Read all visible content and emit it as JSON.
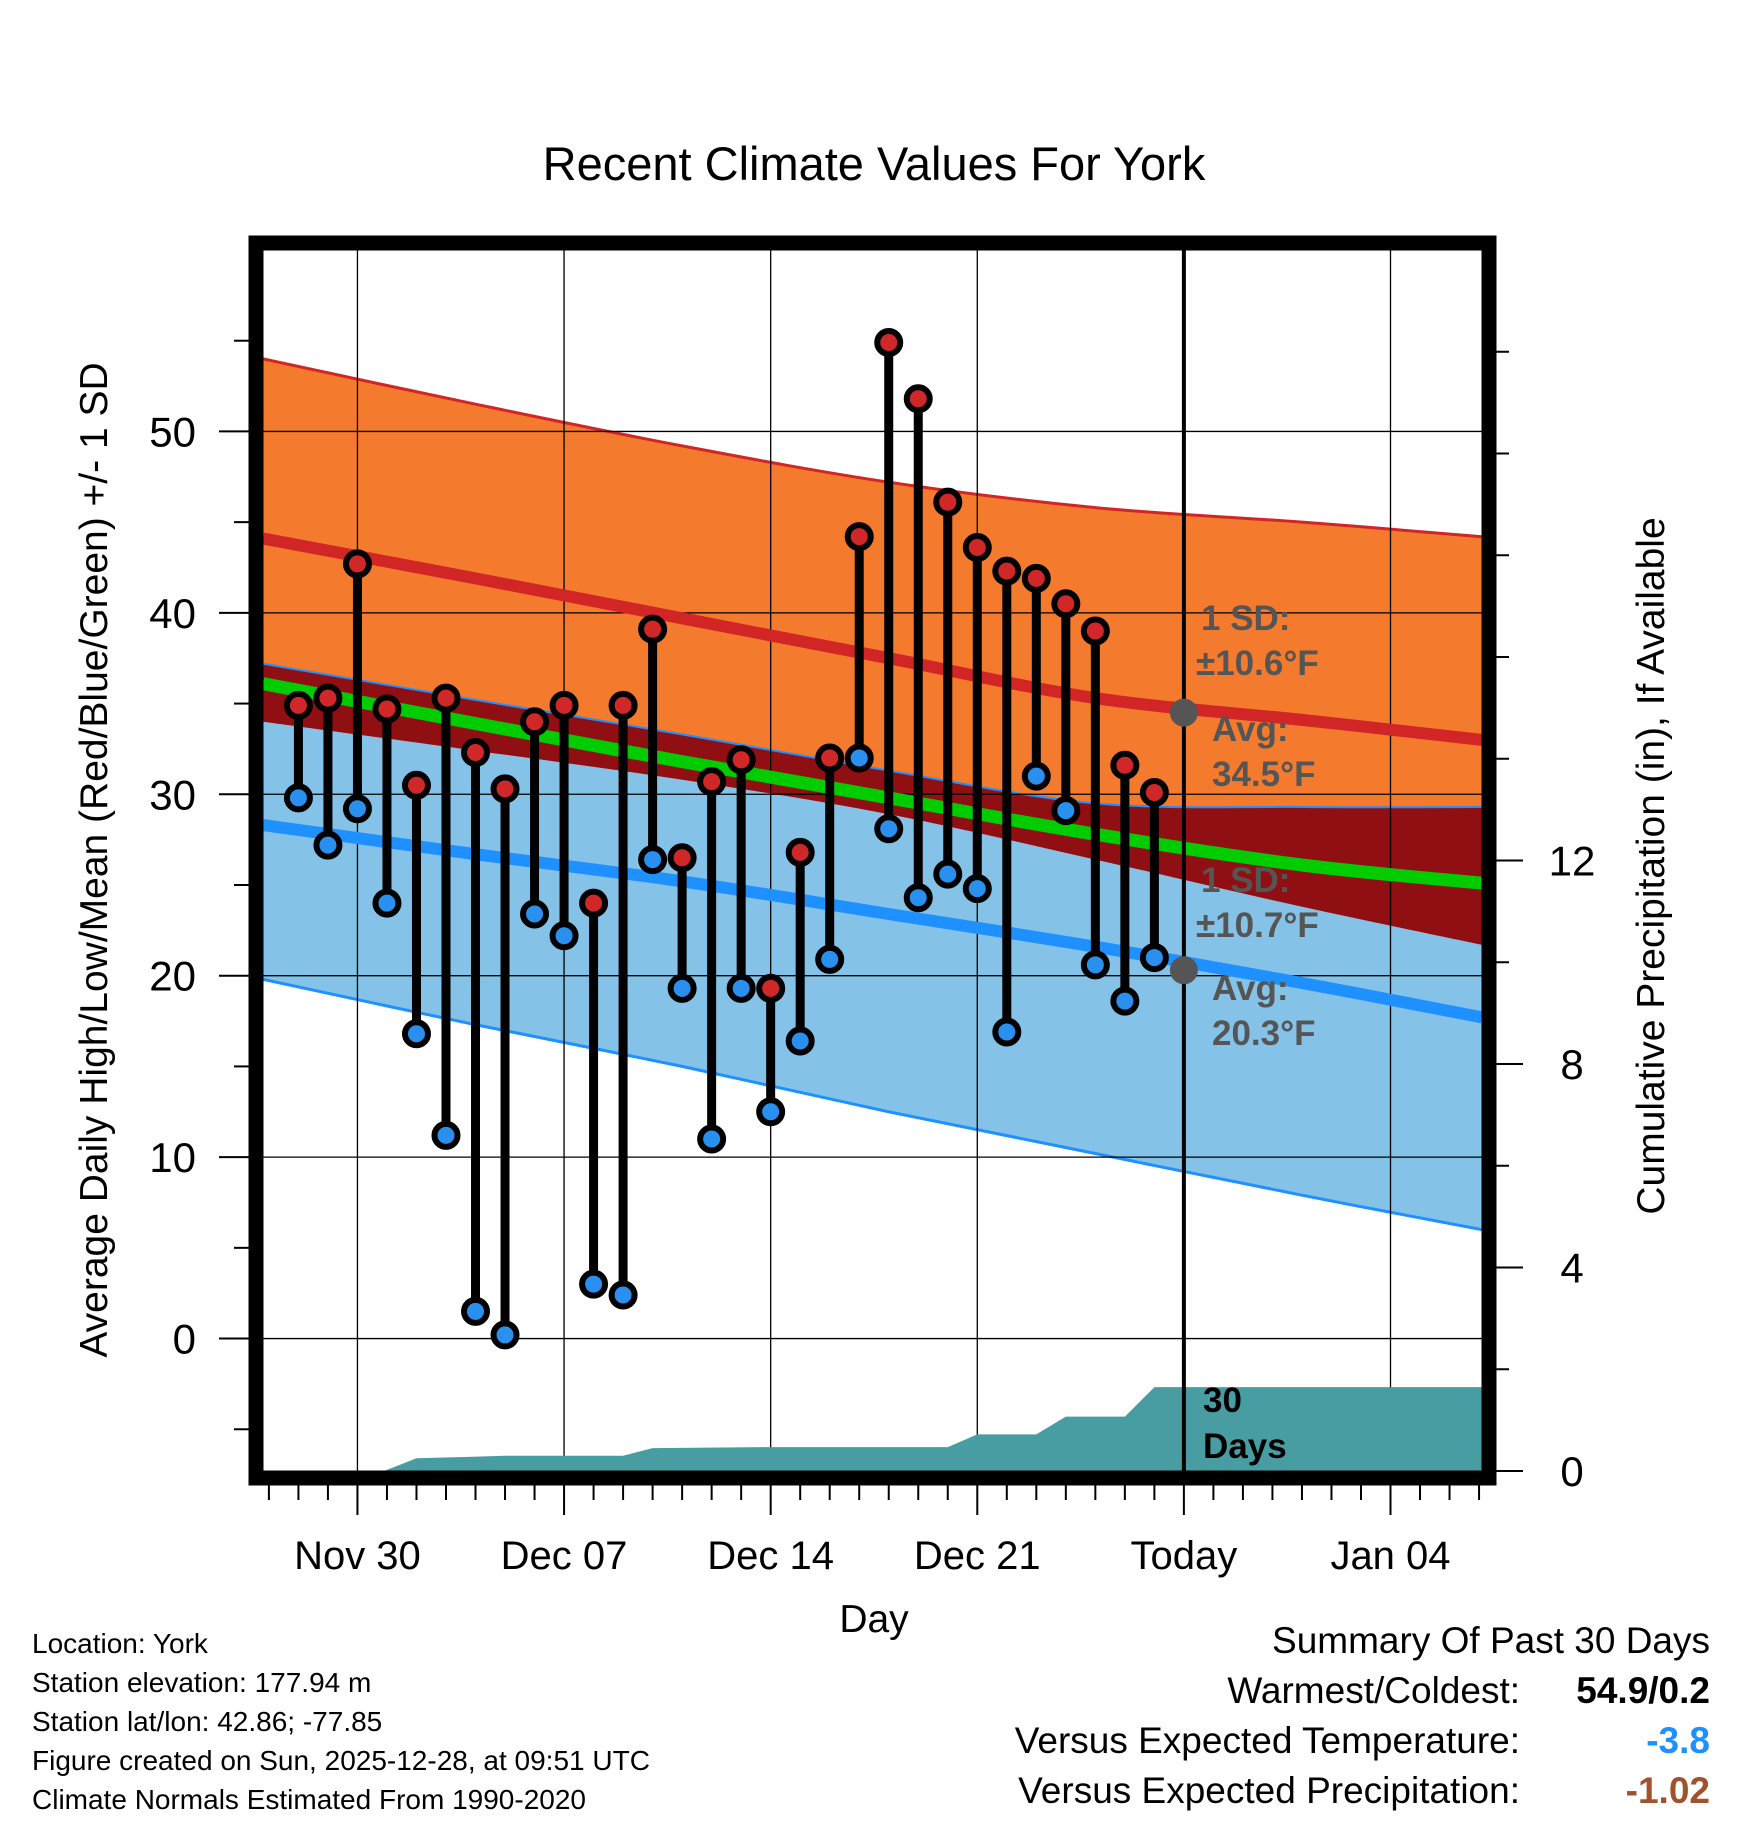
{
  "chart_data": {
    "type": "line",
    "title": "Recent Climate Values For York",
    "xlabel": "Day",
    "ylabel": "Average Daily High/Low/Mean (Red/Blue/Green) +/- 1 SD",
    "y2label": "Cumulative Precipitation (in), If Available",
    "xlim": [
      -3.2,
      38.1
    ],
    "ylim": [
      -7.3,
      60
    ],
    "y2lim": [
      0,
      24
    ],
    "x_ticks": [
      {
        "x": 0,
        "label": "Nov 30"
      },
      {
        "x": 7,
        "label": "Dec 07"
      },
      {
        "x": 14,
        "label": "Dec 14"
      },
      {
        "x": 21,
        "label": "Dec 21"
      },
      {
        "x": 28,
        "label": "Today"
      },
      {
        "x": 35,
        "label": "Jan 04"
      }
    ],
    "y_ticks": [
      0,
      10,
      20,
      30,
      40,
      50
    ],
    "y2_ticks": [
      0,
      4,
      8,
      12
    ],
    "today_x": 28,
    "normals": {
      "x": [
        -3.2,
        4,
        11,
        18,
        25,
        32,
        38.1
      ],
      "high_mean": [
        44.1,
        41.9,
        39.7,
        37.5,
        35.3,
        34.1,
        33.0
      ],
      "high_upper": [
        54.0,
        51.5,
        49.2,
        47.2,
        45.8,
        45.0,
        44.2
      ],
      "high_lower": [
        37.2,
        35.2,
        33.3,
        31.3,
        29.5,
        29.3,
        29.3
      ],
      "mean": [
        36.1,
        33.9,
        31.8,
        29.8,
        27.8,
        26.1,
        25.1
      ],
      "low_mean": [
        28.3,
        26.7,
        25.2,
        23.4,
        21.6,
        19.6,
        17.7
      ],
      "low_upper": [
        34.0,
        32.4,
        30.8,
        28.9,
        26.4,
        23.8,
        21.7
      ],
      "low_lower": [
        19.8,
        17.3,
        15.0,
        12.5,
        10.2,
        7.9,
        6.0
      ]
    },
    "high_sd_label": [
      "1 SD:",
      "±10.6°F"
    ],
    "high_avg_label": [
      "Avg:",
      "34.5°F"
    ],
    "low_sd_label": [
      "1 SD:",
      "±10.7°F"
    ],
    "low_avg_label": [
      "Avg:",
      "20.3°F"
    ],
    "today_high_avg": 34.5,
    "today_low_avg": 20.3,
    "days_label": [
      "30",
      "Days"
    ],
    "series": [
      {
        "name": "Daily High",
        "x": [
          -2,
          -1,
          0,
          1,
          2,
          3,
          4,
          5,
          6,
          7,
          8,
          9,
          10,
          11,
          12,
          13,
          14,
          15,
          16,
          17,
          18,
          19,
          20,
          21,
          22,
          23,
          24,
          25,
          26,
          27
        ],
        "values": [
          34.9,
          35.3,
          42.7,
          34.7,
          30.5,
          35.3,
          32.3,
          30.3,
          34.0,
          34.9,
          24.0,
          34.9,
          39.1,
          26.5,
          30.7,
          31.9,
          19.3,
          26.8,
          32.0,
          44.2,
          54.9,
          51.8,
          46.1,
          43.6,
          42.3,
          41.9,
          40.5,
          39.0,
          31.6,
          30.1
        ]
      },
      {
        "name": "Daily Low",
        "x": [
          -2,
          -1,
          0,
          1,
          2,
          3,
          4,
          5,
          6,
          7,
          8,
          9,
          10,
          11,
          12,
          13,
          14,
          15,
          16,
          17,
          18,
          19,
          20,
          21,
          22,
          23,
          24,
          25,
          26,
          27
        ],
        "values": [
          29.8,
          27.2,
          29.2,
          24.0,
          16.8,
          11.2,
          1.5,
          0.2,
          23.4,
          22.2,
          3.0,
          2.4,
          26.4,
          19.3,
          11.0,
          19.3,
          12.5,
          16.4,
          20.9,
          32.0,
          28.1,
          24.3,
          25.6,
          24.8,
          16.9,
          31.0,
          29.1,
          20.6,
          18.6,
          21.0
        ]
      },
      {
        "name": "Cumulative Precipitation",
        "x": [
          -3.2,
          0.9,
          2.0,
          3.9,
          5.0,
          9.0,
          10.0,
          14.0,
          15.0,
          20.0,
          21.0,
          23.0,
          24.0,
          26.0,
          27.0,
          38.1
        ],
        "values": [
          0,
          0,
          0.25,
          0.28,
          0.3,
          0.3,
          0.45,
          0.47,
          0.47,
          0.47,
          0.72,
          0.72,
          1.07,
          1.07,
          1.65,
          1.65
        ]
      }
    ]
  },
  "footer": {
    "location": "Location: York",
    "elevation": "Station elevation: 177.94 m",
    "latlon": "Station lat/lon: 42.86; -77.85",
    "created": "Figure created on Sun, 2025-12-28, at 09:51 UTC",
    "normals": "Climate Normals Estimated From 1990-2020"
  },
  "summary": {
    "title": "Summary Of Past 30 Days",
    "warmest_label": "Warmest/Coldest:",
    "warmest_value": "54.9/0.2",
    "temp_label": "Versus Expected Temperature:",
    "temp_value": "-3.8",
    "precip_label": "Versus Expected Precipitation:",
    "precip_value": "-1.02"
  },
  "colors": {
    "high_band": "#F47B2E",
    "high_line": "#D22525",
    "overlap_band": "#900F12",
    "mean_line": "#00CC00",
    "low_band": "#85C2E8",
    "low_line": "#1E90FF",
    "precip_fill": "#479DA1",
    "high_marker": "#D02828",
    "low_marker": "#2A90F0",
    "annotation": "#555555",
    "temp_value": "#1E90FF",
    "precip_value": "#A0522D"
  }
}
